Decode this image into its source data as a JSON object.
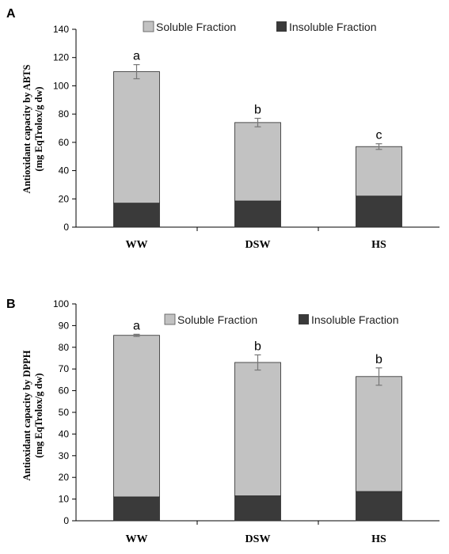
{
  "chart_data": [
    {
      "panel": "A",
      "type": "bar",
      "stacked": true,
      "categories": [
        "WW",
        "DSW",
        "HS"
      ],
      "series": [
        {
          "name": "Insoluble Fraction",
          "values": [
            17,
            18.5,
            22
          ],
          "color": "#3a3a3a"
        },
        {
          "name": "Soluble Fraction",
          "values": [
            93,
            55.5,
            35
          ],
          "color": "#c2c2c2"
        }
      ],
      "totals": [
        110,
        74,
        57
      ],
      "error": [
        5,
        3,
        2
      ],
      "significance": [
        "a",
        "b",
        "c"
      ],
      "ylabel_lines": [
        "Antioxidant  capacity by ABTS",
        "(mg EqTrolox/g dw)"
      ],
      "ylim": [
        0,
        140
      ],
      "yticks": [
        "0",
        "20",
        "40",
        "60",
        "80",
        "100",
        "120",
        "140"
      ],
      "grid": false,
      "legend": "top"
    },
    {
      "panel": "B",
      "type": "bar",
      "stacked": true,
      "categories": [
        "WW",
        "DSW",
        "HS"
      ],
      "series": [
        {
          "name": "Insoluble Fraction",
          "values": [
            11,
            11.5,
            13.5
          ],
          "color": "#3a3a3a"
        },
        {
          "name": "Soluble Fraction",
          "values": [
            74.5,
            61.5,
            53
          ],
          "color": "#c2c2c2"
        }
      ],
      "totals": [
        85.5,
        73,
        66.5
      ],
      "error": [
        0.5,
        3.5,
        4
      ],
      "significance": [
        "a",
        "b",
        "b"
      ],
      "ylabel_lines": [
        "Antioxidant capacity by DPPH",
        "(mg EqTrolox/g dw)"
      ],
      "ylim": [
        0,
        100
      ],
      "yticks": [
        "0",
        "10",
        "20",
        "30",
        "40",
        "50",
        "60",
        "70",
        "80",
        "90",
        "100"
      ],
      "grid": false,
      "legend": "top"
    }
  ]
}
